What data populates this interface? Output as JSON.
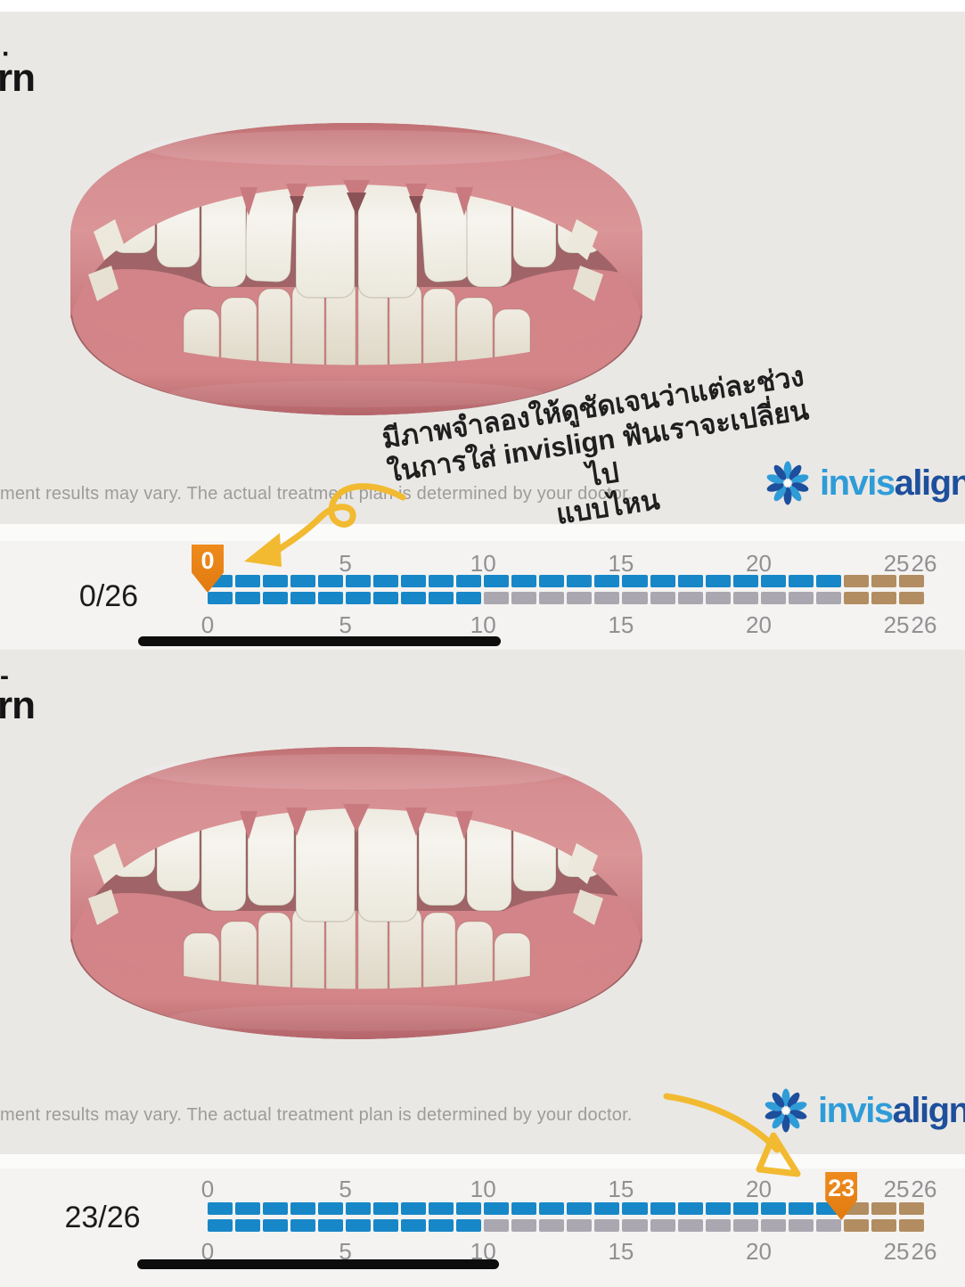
{
  "brand": {
    "wordmark_light": "invis",
    "wordmark_dark": "align",
    "trademark": "·",
    "color_light": "#2f9cd8",
    "color_dark": "#1d4f9c"
  },
  "annotation": {
    "line1": "มีภาพจำลองให้ดูชัดเจนว่าแต่ละช่วง",
    "line2": "ในการใส่ invislign ฟันเราจะเปลี่ยนไป",
    "line3": "แบบไหน",
    "arrow_color": "#f2ba31",
    "text_color": "#1f1f1f"
  },
  "sections": [
    {
      "name": "before",
      "corner_dash": "·",
      "corner_text": "rn",
      "disclaimer": "ment results may vary. The actual treatment plan is determined by your doctor."
    },
    {
      "name": "after",
      "corner_dash": "-",
      "corner_text": "rn",
      "disclaimer": "ment results may vary. The actual treatment plan is determined by your doctor."
    }
  ],
  "chart_data": [
    {
      "type": "progress-timeline",
      "label": "0/26",
      "current_stage": 0,
      "total_stages": 26,
      "ticks": [
        0,
        5,
        10,
        15,
        20,
        25,
        26
      ],
      "rows": [
        {
          "name": "upper-arch",
          "ranges": [
            {
              "color": "active",
              "from": 1,
              "to": 23
            },
            {
              "color": "refinement",
              "from": 24,
              "to": 26
            }
          ]
        },
        {
          "name": "lower-arch",
          "ranges": [
            {
              "color": "active",
              "from": 1,
              "to": 10
            },
            {
              "color": "passive",
              "from": 11,
              "to": 23
            },
            {
              "color": "refinement",
              "from": 24,
              "to": 26
            }
          ]
        }
      ],
      "colors": {
        "active": "#1787c8",
        "passive": "#aaa7b1",
        "refinement": "#b28d61",
        "marker": "#ef8a1c"
      }
    },
    {
      "type": "progress-timeline",
      "label": "23/26",
      "current_stage": 23,
      "total_stages": 26,
      "ticks": [
        0,
        5,
        10,
        15,
        20,
        25,
        26
      ],
      "rows": [
        {
          "name": "upper-arch",
          "ranges": [
            {
              "color": "active",
              "from": 1,
              "to": 23
            },
            {
              "color": "refinement",
              "from": 24,
              "to": 26
            }
          ]
        },
        {
          "name": "lower-arch",
          "ranges": [
            {
              "color": "active",
              "from": 1,
              "to": 10
            },
            {
              "color": "passive",
              "from": 11,
              "to": 23
            },
            {
              "color": "refinement",
              "from": 24,
              "to": 26
            }
          ]
        }
      ],
      "colors": {
        "active": "#1787c8",
        "passive": "#aaa7b1",
        "refinement": "#b28d61",
        "marker": "#ef8a1c"
      }
    }
  ]
}
